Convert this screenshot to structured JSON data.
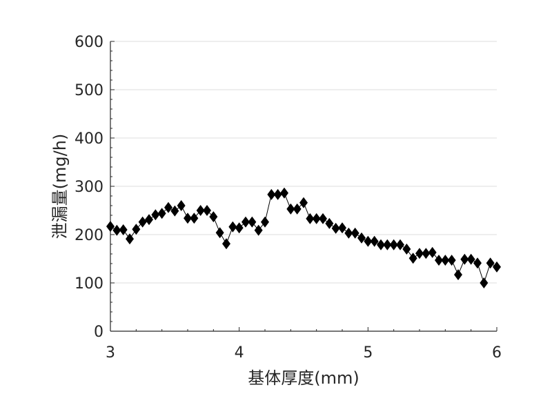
{
  "chart_data": {
    "type": "line",
    "title": "",
    "xlabel": "基体厚度(mm)",
    "ylabel": "泄漏量(mg/h)",
    "xlim": [
      3,
      6
    ],
    "ylim": [
      0,
      600
    ],
    "xticks": [
      3,
      4,
      5,
      6
    ],
    "yticks": [
      0,
      100,
      200,
      300,
      400,
      500,
      600
    ],
    "x_minor_step": 0.2,
    "y_minor_step": 20,
    "grid": "horizontal major",
    "legend": null,
    "marker": "diamond",
    "line_color": "#000000",
    "marker_color": "#000000",
    "grid_color": "#dcdcdc",
    "series": [
      {
        "name": "泄漏量",
        "x": [
          3.0,
          3.05,
          3.1,
          3.15,
          3.2,
          3.25,
          3.3,
          3.35,
          3.4,
          3.45,
          3.5,
          3.55,
          3.6,
          3.65,
          3.7,
          3.75,
          3.8,
          3.85,
          3.9,
          3.95,
          4.0,
          4.05,
          4.1,
          4.15,
          4.2,
          4.25,
          4.3,
          4.35,
          4.4,
          4.45,
          4.5,
          4.55,
          4.6,
          4.65,
          4.7,
          4.75,
          4.8,
          4.85,
          4.9,
          4.95,
          5.0,
          5.05,
          5.1,
          5.15,
          5.2,
          5.25,
          5.3,
          5.35,
          5.4,
          5.45,
          5.5,
          5.55,
          5.6,
          5.65,
          5.7,
          5.75,
          5.8,
          5.85,
          5.9,
          5.95,
          6.0
        ],
        "values": [
          217,
          209,
          210,
          191,
          211,
          226,
          231,
          241,
          244,
          256,
          249,
          260,
          234,
          234,
          250,
          250,
          237,
          204,
          181,
          216,
          214,
          226,
          226,
          209,
          226,
          283,
          283,
          286,
          253,
          253,
          266,
          233,
          233,
          233,
          223,
          213,
          214,
          203,
          203,
          193,
          186,
          186,
          179,
          179,
          179,
          179,
          170,
          151,
          161,
          161,
          163,
          147,
          147,
          147,
          117,
          149,
          149,
          141,
          100,
          141,
          133
        ]
      }
    ]
  }
}
